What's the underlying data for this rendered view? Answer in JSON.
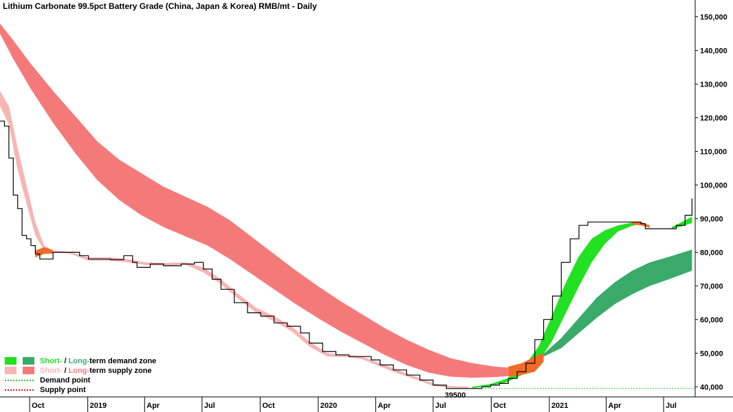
{
  "chart_data": {
    "type": "line",
    "title": "Lithium Carbonate 99.5pct Battery Grade (China, Japan & Korea) RMB/mt - Daily",
    "xlabel": "",
    "ylabel": "",
    "x_range": [
      "2018-08-15",
      "2021-08-20"
    ],
    "ylim": [
      37000,
      155000
    ],
    "y_axis_side": "right",
    "y_ticks": [
      {
        "value": 40000,
        "label": "40,000"
      },
      {
        "value": 50000,
        "label": "50,000"
      },
      {
        "value": 60000,
        "label": "60,000"
      },
      {
        "value": 70000,
        "label": "70,000"
      },
      {
        "value": 80000,
        "label": "80,000"
      },
      {
        "value": 90000,
        "label": "90,000"
      },
      {
        "value": 100000,
        "label": "100,000"
      },
      {
        "value": 110000,
        "label": "110,000"
      },
      {
        "value": 120000,
        "label": "120,000"
      },
      {
        "value": 130000,
        "label": "130,000"
      },
      {
        "value": 140000,
        "label": "140,000"
      },
      {
        "value": 150000,
        "label": "150,000"
      }
    ],
    "x_ticks": [
      {
        "date": "2018-10-01",
        "label": "Oct"
      },
      {
        "date": "2019-01-01",
        "label": "2019"
      },
      {
        "date": "2019-04-01",
        "label": "Apr"
      },
      {
        "date": "2019-07-01",
        "label": "Jul"
      },
      {
        "date": "2019-10-01",
        "label": "Oct"
      },
      {
        "date": "2020-01-01",
        "label": "2020"
      },
      {
        "date": "2020-04-01",
        "label": "Apr"
      },
      {
        "date": "2020-07-01",
        "label": "Jul"
      },
      {
        "date": "2020-10-01",
        "label": "Oct"
      },
      {
        "date": "2021-01-01",
        "label": "2021"
      },
      {
        "date": "2021-04-01",
        "label": "Apr"
      },
      {
        "date": "2021-07-01",
        "label": "Jul"
      }
    ],
    "colors": {
      "price": "#000000",
      "short_supply": "#f7b5b5",
      "long_supply": "#f47a7a",
      "short_demand": "#22e022",
      "long_demand": "#3aaa6a",
      "crossover": "#f06a28",
      "demand_point": "#22cc22",
      "supply_point": "#dd1111"
    },
    "price": [
      [
        "2018-08-15",
        119000
      ],
      [
        "2018-08-22",
        117500
      ],
      [
        "2018-08-29",
        108000
      ],
      [
        "2018-09-05",
        97000
      ],
      [
        "2018-09-12",
        93000
      ],
      [
        "2018-09-19",
        85000
      ],
      [
        "2018-09-26",
        84000
      ],
      [
        "2018-10-03",
        82000
      ],
      [
        "2018-10-10",
        79500
      ],
      [
        "2018-10-17",
        78000
      ],
      [
        "2018-10-31",
        78000
      ],
      [
        "2018-11-07",
        80000
      ],
      [
        "2018-12-05",
        80000
      ],
      [
        "2018-12-19",
        79000
      ],
      [
        "2019-01-02",
        78000
      ],
      [
        "2019-02-06",
        77800
      ],
      [
        "2019-02-27",
        79000
      ],
      [
        "2019-03-13",
        77000
      ],
      [
        "2019-03-20",
        75500
      ],
      [
        "2019-04-10",
        76500
      ],
      [
        "2019-05-01",
        76000
      ],
      [
        "2019-05-29",
        76500
      ],
      [
        "2019-06-19",
        77000
      ],
      [
        "2019-06-26",
        77000
      ],
      [
        "2019-07-03",
        75000
      ],
      [
        "2019-07-17",
        72000
      ],
      [
        "2019-07-31",
        69000
      ],
      [
        "2019-08-21",
        65000
      ],
      [
        "2019-09-11",
        62000
      ],
      [
        "2019-10-02",
        61000
      ],
      [
        "2019-10-23",
        59000
      ],
      [
        "2019-11-13",
        58000
      ],
      [
        "2019-12-04",
        56000
      ],
      [
        "2019-12-18",
        53000
      ],
      [
        "2020-01-08",
        50500
      ],
      [
        "2020-01-29",
        49500
      ],
      [
        "2020-02-19",
        49000
      ],
      [
        "2020-03-11",
        49000
      ],
      [
        "2020-03-25",
        48000
      ],
      [
        "2020-04-08",
        46500
      ],
      [
        "2020-04-29",
        45000
      ],
      [
        "2020-05-20",
        43500
      ],
      [
        "2020-06-10",
        42000
      ],
      [
        "2020-07-01",
        40500
      ],
      [
        "2020-07-22",
        39500
      ],
      [
        "2020-08-12",
        39500
      ],
      [
        "2020-09-02",
        39500
      ],
      [
        "2020-09-16",
        40000
      ],
      [
        "2020-09-30",
        40500
      ],
      [
        "2020-10-14",
        41000
      ],
      [
        "2020-10-28",
        42500
      ],
      [
        "2020-11-11",
        44500
      ],
      [
        "2020-11-25",
        47000
      ],
      [
        "2020-12-09",
        54000
      ],
      [
        "2020-12-23",
        60000
      ],
      [
        "2021-01-06",
        67000
      ],
      [
        "2021-01-20",
        77000
      ],
      [
        "2021-02-03",
        84000
      ],
      [
        "2021-02-17",
        88000
      ],
      [
        "2021-03-03",
        89000
      ],
      [
        "2021-04-07",
        89000
      ],
      [
        "2021-05-05",
        89000
      ],
      [
        "2021-05-26",
        88500
      ],
      [
        "2021-06-02",
        87000
      ],
      [
        "2021-07-07",
        87000
      ],
      [
        "2021-07-21",
        88000
      ],
      [
        "2021-08-04",
        91000
      ],
      [
        "2021-08-15",
        96000
      ]
    ],
    "short_term_supply_zone": [
      [
        "2018-08-15",
        128000,
        123500
      ],
      [
        "2018-08-29",
        123500,
        118000
      ],
      [
        "2018-09-12",
        111000,
        104500
      ],
      [
        "2018-09-26",
        100000,
        94500
      ],
      [
        "2018-10-10",
        89000,
        85000
      ],
      [
        "2018-10-24",
        82000,
        80500
      ],
      [
        "2018-11-07",
        80500,
        80000
      ],
      [
        "2018-12-05",
        80000,
        79500
      ],
      [
        "2019-01-02",
        78500,
        77500
      ],
      [
        "2019-02-06",
        78500,
        77500
      ],
      [
        "2019-03-06",
        78000,
        77000
      ],
      [
        "2019-04-03",
        77000,
        76200
      ],
      [
        "2019-05-01",
        76800,
        76000
      ],
      [
        "2019-06-05",
        77000,
        76300
      ],
      [
        "2019-07-03",
        75500,
        74000
      ],
      [
        "2019-07-31",
        72000,
        70500
      ],
      [
        "2019-08-28",
        67500,
        66000
      ],
      [
        "2019-09-25",
        63500,
        62000
      ],
      [
        "2019-10-23",
        61000,
        59500
      ],
      [
        "2019-11-20",
        58000,
        56500
      ],
      [
        "2019-12-18",
        53500,
        52000
      ],
      [
        "2020-01-15",
        50000,
        49000
      ],
      [
        "2020-02-12",
        49500,
        48900
      ],
      [
        "2020-03-11",
        49000,
        48200
      ],
      [
        "2020-04-08",
        47000,
        46000
      ],
      [
        "2020-05-06",
        45000,
        44000
      ],
      [
        "2020-06-03",
        43000,
        42200
      ],
      [
        "2020-07-01",
        41000,
        40300
      ],
      [
        "2020-07-29",
        40200,
        39700
      ],
      [
        "2020-08-26",
        40000,
        39600
      ]
    ],
    "long_term_supply_zone": [
      [
        "2018-08-15",
        148000,
        145000
      ],
      [
        "2018-09-05",
        143000,
        137500
      ],
      [
        "2018-10-03",
        136000,
        128500
      ],
      [
        "2018-11-07",
        128000,
        118500
      ],
      [
        "2018-12-12",
        120500,
        109500
      ],
      [
        "2019-01-16",
        113000,
        101500
      ],
      [
        "2019-02-20",
        107500,
        95500
      ],
      [
        "2019-03-27",
        103500,
        91000
      ],
      [
        "2019-05-01",
        99500,
        87500
      ],
      [
        "2019-06-05",
        96500,
        84700
      ],
      [
        "2019-07-10",
        93500,
        82000
      ],
      [
        "2019-08-14",
        89500,
        78000
      ],
      [
        "2019-09-18",
        84500,
        73500
      ],
      [
        "2019-10-23",
        79500,
        69000
      ],
      [
        "2019-11-27",
        74500,
        64500
      ],
      [
        "2019-12-31",
        70000,
        60500
      ],
      [
        "2020-02-05",
        65500,
        56500
      ],
      [
        "2020-03-11",
        61500,
        53000
      ],
      [
        "2020-04-15",
        57500,
        49500
      ],
      [
        "2020-05-20",
        54000,
        46500
      ],
      [
        "2020-06-24",
        51000,
        44200
      ],
      [
        "2020-07-29",
        48500,
        43000
      ],
      [
        "2020-09-02",
        47000,
        42700
      ],
      [
        "2020-10-07",
        46000,
        42900
      ],
      [
        "2020-10-28",
        45700,
        43200
      ]
    ],
    "short_term_demand_zone": [
      [
        "2020-09-01",
        40000,
        39600
      ],
      [
        "2020-09-29",
        40800,
        40200
      ],
      [
        "2020-10-27",
        42500,
        41500
      ],
      [
        "2020-11-24",
        46500,
        44000
      ],
      [
        "2020-12-15",
        52000,
        47500
      ],
      [
        "2021-01-05",
        61000,
        53500
      ],
      [
        "2021-01-26",
        70500,
        61500
      ],
      [
        "2021-02-16",
        78500,
        69500
      ],
      [
        "2021-03-09",
        84000,
        77000
      ],
      [
        "2021-03-30",
        86500,
        82500
      ],
      [
        "2021-04-20",
        88000,
        86200
      ],
      [
        "2021-05-11",
        88800,
        87800
      ],
      [
        "2021-05-26",
        89000,
        88500
      ]
    ],
    "short_term_demand_zone_late": [
      [
        "2021-07-14",
        87500,
        87000
      ],
      [
        "2021-07-28",
        88800,
        87600
      ],
      [
        "2021-08-15",
        90600,
        88700
      ]
    ],
    "long_term_demand_zone": [
      [
        "2020-12-23",
        49800,
        49000
      ],
      [
        "2021-01-20",
        54500,
        51500
      ],
      [
        "2021-02-17",
        60500,
        56000
      ],
      [
        "2021-03-17",
        66500,
        60500
      ],
      [
        "2021-04-14",
        71000,
        64500
      ],
      [
        "2021-05-12",
        74500,
        67500
      ],
      [
        "2021-06-09",
        77000,
        70000
      ],
      [
        "2021-07-07",
        78500,
        71800
      ],
      [
        "2021-08-15",
        80800,
        74500
      ]
    ],
    "crossover_zones": [
      [
        [
          "2018-10-10",
          80500,
          78500
        ],
        [
          "2018-10-24",
          81500,
          79500
        ],
        [
          "2018-11-07",
          80600,
          79600
        ]
      ],
      [
        [
          "2020-10-28",
          46000,
          43000
        ],
        [
          "2020-11-18",
          47000,
          43500
        ],
        [
          "2020-12-09",
          49000,
          44500
        ],
        [
          "2020-12-23",
          50000,
          47500
        ]
      ],
      [
        [
          "2021-05-12",
          89000,
          88300
        ],
        [
          "2021-05-26",
          89000,
          88000
        ],
        [
          "2021-06-09",
          88000,
          87300
        ]
      ]
    ],
    "demand_point": {
      "value": 39500,
      "from": "2020-07-22"
    },
    "annotations": [
      {
        "text": "39500",
        "date": "2020-08-05",
        "value": 39500
      }
    ],
    "legend": {
      "placement": "bottom-left",
      "items": [
        {
          "kind": "zone",
          "short_text": "Short-",
          "sep_text": " / ",
          "long_text": "Long-",
          "tail_text": "term demand zone",
          "short_color": "#22e022",
          "long_color": "#3aaa6a"
        },
        {
          "kind": "zone",
          "short_text": "Short-",
          "sep_text": " / ",
          "long_text": "Long-",
          "tail_text": "term supply zone",
          "short_color": "#f7b5b5",
          "long_color": "#f47a7a"
        },
        {
          "kind": "dotted",
          "label": "Demand point",
          "color": "#22cc22"
        },
        {
          "kind": "dotted",
          "label": "Supply point",
          "color": "#dd1111"
        }
      ]
    },
    "grid": false
  }
}
